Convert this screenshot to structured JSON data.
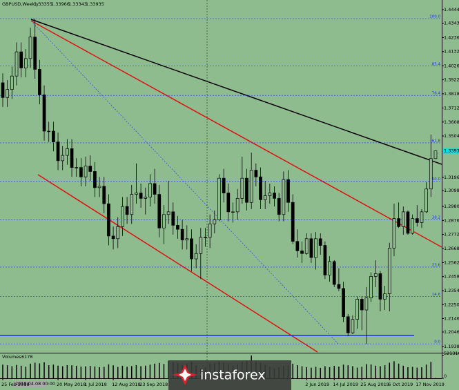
{
  "chart_data": {
    "type": "candlestick",
    "title": "GBPUSD,Weekly",
    "volume_label": "Volumes",
    "cursor_label": "2018.04.08 00:00",
    "watermark": "instaforex",
    "up_color": "#8fbc8f",
    "down_color": "#000000",
    "volume_color": "#000000",
    "fib_color": "#1a2eff",
    "categories": [
      "25 Feb 2018",
      null,
      null,
      null,
      null,
      null,
      null,
      null,
      null,
      null,
      null,
      null,
      "20 May 2018",
      null,
      null,
      null,
      null,
      null,
      "1 Jul 2018",
      null,
      null,
      null,
      null,
      null,
      "12 Aug 2018",
      null,
      null,
      null,
      null,
      null,
      "23 Sep 2018",
      null,
      null,
      null,
      null,
      null,
      null,
      null,
      null,
      null,
      null,
      null,
      null,
      null,
      null,
      null,
      null,
      null,
      null,
      null,
      null,
      null,
      null,
      null,
      null,
      null,
      null,
      null,
      null,
      null,
      null,
      null,
      null,
      null,
      null,
      null,
      "2 Jun 2019",
      null,
      null,
      null,
      null,
      null,
      "14 Jul 2019",
      null,
      null,
      null,
      null,
      null,
      "25 Aug 2019",
      null,
      null,
      null,
      null,
      null,
      "6 Oct 2019",
      null,
      null,
      null,
      null,
      null,
      "17 Nov 2019",
      null,
      null,
      null,
      null
    ],
    "open": [
      1.39,
      1.379,
      1.385,
      1.395,
      1.413,
      1.401,
      1.408,
      1.424,
      1.4,
      1.381,
      1.354,
      1.354,
      1.346,
      1.332,
      1.336,
      1.341,
      1.327,
      1.327,
      1.32,
      1.328,
      1.324,
      1.312,
      1.313,
      1.3,
      1.276,
      1.274,
      1.283,
      1.298,
      1.292,
      1.307,
      1.308,
      1.304,
      1.305,
      1.315,
      1.307,
      1.282,
      1.292,
      1.294,
      1.284,
      1.281,
      1.273,
      1.274,
      1.259,
      1.263,
      1.275,
      1.275,
      1.285,
      1.288,
      1.319,
      1.308,
      1.294,
      1.294,
      1.304,
      1.319,
      1.301,
      1.325,
      1.32,
      1.303,
      1.306,
      1.308,
      1.304,
      1.292,
      1.318,
      1.301,
      1.272,
      1.265,
      1.263,
      1.274,
      1.26,
      1.274,
      1.269,
      1.247,
      1.257,
      1.24,
      1.237,
      1.216,
      1.204,
      1.214,
      1.229,
      1.221,
      1.23,
      1.246,
      1.248,
      1.229,
      1.233,
      1.267,
      1.289,
      1.283,
      1.294,
      1.278,
      1.289,
      1.286,
      1.294,
      1.311,
      1.33355
    ],
    "high": [
      1.397,
      1.392,
      1.402,
      1.42,
      1.42,
      1.415,
      1.431,
      1.4377,
      1.407,
      1.388,
      1.361,
      1.361,
      1.353,
      1.343,
      1.348,
      1.348,
      1.334,
      1.334,
      1.335,
      1.336,
      1.331,
      1.32,
      1.32,
      1.307,
      1.283,
      1.29,
      1.305,
      1.305,
      1.314,
      1.33,
      1.315,
      1.312,
      1.322,
      1.326,
      1.314,
      1.299,
      1.317,
      1.301,
      1.291,
      1.288,
      1.284,
      1.281,
      1.27,
      1.282,
      1.282,
      1.292,
      1.295,
      1.322,
      1.326,
      1.315,
      1.301,
      1.311,
      1.335,
      1.326,
      1.338,
      1.33,
      1.327,
      1.317,
      1.315,
      1.313,
      1.308,
      1.324,
      1.325,
      1.307,
      1.281,
      1.272,
      1.278,
      1.278,
      1.279,
      1.278,
      1.272,
      1.261,
      1.258,
      1.252,
      1.242,
      1.218,
      1.217,
      1.231,
      1.231,
      1.238,
      1.249,
      1.258,
      1.25,
      1.239,
      1.271,
      1.3,
      1.301,
      1.298,
      1.295,
      1.292,
      1.299,
      1.296,
      1.316,
      1.3515,
      1.33966
    ],
    "low": [
      1.372,
      1.372,
      1.378,
      1.388,
      1.394,
      1.394,
      1.401,
      1.393,
      1.374,
      1.347,
      1.346,
      1.339,
      1.325,
      1.325,
      1.329,
      1.32,
      1.32,
      1.313,
      1.313,
      1.317,
      1.305,
      1.305,
      1.293,
      1.269,
      1.266,
      1.267,
      1.276,
      1.285,
      1.285,
      1.3,
      1.297,
      1.292,
      1.298,
      1.3,
      1.275,
      1.27,
      1.285,
      1.277,
      1.274,
      1.266,
      1.266,
      1.25,
      1.252,
      1.244,
      1.268,
      1.267,
      1.278,
      1.287,
      1.301,
      1.287,
      1.286,
      1.288,
      1.3,
      1.295,
      1.296,
      1.313,
      1.296,
      1.296,
      1.3,
      1.298,
      1.287,
      1.287,
      1.294,
      1.27,
      1.26,
      1.256,
      1.262,
      1.256,
      1.251,
      1.262,
      1.244,
      1.242,
      1.238,
      1.235,
      1.212,
      1.2015,
      1.203,
      1.207,
      1.206,
      1.1958,
      1.227,
      1.238,
      1.22,
      1.221,
      1.22,
      1.261,
      1.282,
      1.277,
      1.277,
      1.277,
      1.283,
      1.282,
      1.293,
      1.305,
      1.33343
    ],
    "close": [
      1.379,
      1.385,
      1.395,
      1.413,
      1.401,
      1.408,
      1.424,
      1.4,
      1.381,
      1.354,
      1.354,
      1.346,
      1.332,
      1.336,
      1.341,
      1.327,
      1.327,
      1.32,
      1.328,
      1.324,
      1.312,
      1.313,
      1.3,
      1.276,
      1.274,
      1.283,
      1.298,
      1.292,
      1.307,
      1.308,
      1.304,
      1.305,
      1.315,
      1.307,
      1.282,
      1.292,
      1.294,
      1.284,
      1.281,
      1.273,
      1.274,
      1.259,
      1.263,
      1.275,
      1.275,
      1.285,
      1.288,
      1.319,
      1.308,
      1.294,
      1.294,
      1.304,
      1.319,
      1.301,
      1.325,
      1.32,
      1.303,
      1.306,
      1.308,
      1.304,
      1.292,
      1.318,
      1.301,
      1.272,
      1.265,
      1.263,
      1.274,
      1.26,
      1.274,
      1.269,
      1.247,
      1.257,
      1.24,
      1.237,
      1.216,
      1.204,
      1.214,
      1.229,
      1.221,
      1.23,
      1.246,
      1.248,
      1.229,
      1.233,
      1.267,
      1.289,
      1.283,
      1.294,
      1.278,
      1.289,
      1.286,
      1.294,
      1.311,
      1.3336,
      1.33935
    ],
    "volumes": [
      312000,
      298000,
      276000,
      305000,
      287000,
      265000,
      334000,
      356000,
      341000,
      367000,
      298000,
      312000,
      289000,
      276000,
      301000,
      296000,
      284000,
      267000,
      273000,
      281000,
      269000,
      254000,
      262000,
      318000,
      296000,
      259000,
      287000,
      264000,
      279000,
      301000,
      276000,
      288000,
      312000,
      334000,
      351000,
      327000,
      398000,
      364000,
      342000,
      309000,
      336000,
      381000,
      296000,
      214000,
      246000,
      338000,
      352000,
      389000,
      361000,
      327000,
      298000,
      311000,
      376000,
      402000,
      521310,
      387000,
      356000,
      312000,
      264000,
      221000,
      248000,
      286000,
      301000,
      334000,
      298000,
      276000,
      254000,
      243000,
      261000,
      238000,
      276000,
      254000,
      283000,
      266000,
      312000,
      298000,
      276000,
      243000,
      261000,
      322000,
      315000,
      287000,
      276000,
      298000,
      356000,
      389000,
      334000,
      287000,
      254000,
      261000,
      243000,
      251000,
      312000,
      374000,
      6178
    ],
    "ylim": [
      1.1897,
      1.449
    ],
    "yticks": [
      {
        "value": 1.4444,
        "label": "1.44440"
      },
      {
        "value": 1.4343,
        "label": "1.43430"
      },
      {
        "value": 1.4236,
        "label": "1.42360"
      },
      {
        "value": 1.4132,
        "label": "1.41320"
      },
      {
        "value": 1.4026,
        "label": "1.40260"
      },
      {
        "value": 1.3922,
        "label": "1.39220"
      },
      {
        "value": 1.3818,
        "label": "1.38180"
      },
      {
        "value": 1.3712,
        "label": "1.37120"
      },
      {
        "value": 1.3608,
        "label": "1.36080"
      },
      {
        "value": 1.3504,
        "label": "1.35040"
      },
      {
        "value": 1.3196,
        "label": "1.31960"
      },
      {
        "value": 1.3098,
        "label": "1.30980"
      },
      {
        "value": 1.298,
        "label": "1.29800"
      },
      {
        "value": 1.2876,
        "label": "1.28760"
      },
      {
        "value": 1.2772,
        "label": "1.27720"
      },
      {
        "value": 1.2668,
        "label": "1.26680"
      },
      {
        "value": 1.2562,
        "label": "1.25620"
      },
      {
        "value": 1.2458,
        "label": "1.24580"
      },
      {
        "value": 1.2354,
        "label": "1.23540"
      },
      {
        "value": 1.225,
        "label": "1.22500"
      },
      {
        "value": 1.2146,
        "label": "1.21460"
      },
      {
        "value": 1.2046,
        "label": "1.20460"
      },
      {
        "value": 1.1938,
        "label": "1.19380"
      }
    ],
    "volume_ylim": [
      0,
      521310
    ],
    "volume_yticks": [
      0,
      521310
    ],
    "fib_levels": [
      {
        "label": "100.0",
        "price": 1.4377
      },
      {
        "label": "85.4",
        "price": 1.4024
      },
      {
        "label": "76.4",
        "price": 1.3806
      },
      {
        "label": "61.8",
        "price": 1.3453
      },
      {
        "label": "50.0",
        "price": 1.3168
      },
      {
        "label": "38.2",
        "price": 1.2882
      },
      {
        "label": "23.6",
        "price": 1.2529
      },
      {
        "label": "14.6",
        "price": 1.231
      },
      {
        "label": "0.0",
        "price": 1.1958
      }
    ]
  }
}
